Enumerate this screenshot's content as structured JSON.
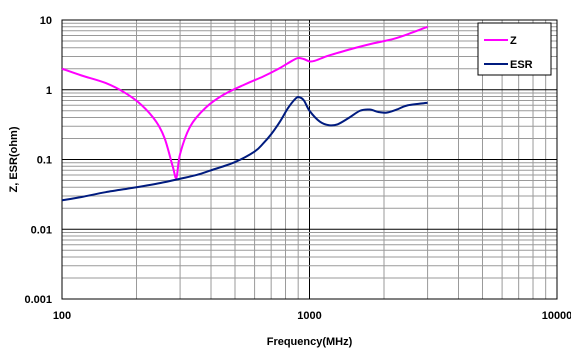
{
  "chart_data": {
    "type": "line",
    "xlabel": "Frequency(MHz)",
    "ylabel": "Z, ESR(ohm)",
    "x_scale": "log",
    "y_scale": "log",
    "xlim": [
      100,
      10000
    ],
    "ylim": [
      0.001,
      10
    ],
    "x_ticks": [
      "100",
      "1000",
      "10000"
    ],
    "y_ticks": [
      "0.001",
      "0.01",
      "0.1",
      "1",
      "10"
    ],
    "grid": true,
    "legend_position": "top-right",
    "series": [
      {
        "name": "Z",
        "color": "#ff00ff",
        "points": [
          [
            100,
            2.0
          ],
          [
            120,
            1.6
          ],
          [
            150,
            1.25
          ],
          [
            180,
            0.9
          ],
          [
            210,
            0.6
          ],
          [
            240,
            0.35
          ],
          [
            260,
            0.2
          ],
          [
            280,
            0.08
          ],
          [
            290,
            0.055
          ],
          [
            300,
            0.12
          ],
          [
            330,
            0.3
          ],
          [
            380,
            0.55
          ],
          [
            450,
            0.85
          ],
          [
            550,
            1.2
          ],
          [
            650,
            1.55
          ],
          [
            750,
            2.0
          ],
          [
            850,
            2.6
          ],
          [
            900,
            2.85
          ],
          [
            950,
            2.75
          ],
          [
            1000,
            2.55
          ],
          [
            1050,
            2.6
          ],
          [
            1200,
            3.1
          ],
          [
            1500,
            3.9
          ],
          [
            1800,
            4.6
          ],
          [
            2200,
            5.4
          ],
          [
            2600,
            6.6
          ],
          [
            3000,
            8.0
          ]
        ]
      },
      {
        "name": "ESR",
        "color": "#001b7f",
        "points": [
          [
            100,
            0.026
          ],
          [
            120,
            0.029
          ],
          [
            150,
            0.034
          ],
          [
            200,
            0.04
          ],
          [
            250,
            0.046
          ],
          [
            300,
            0.053
          ],
          [
            350,
            0.06
          ],
          [
            400,
            0.07
          ],
          [
            500,
            0.092
          ],
          [
            600,
            0.13
          ],
          [
            650,
            0.17
          ],
          [
            700,
            0.23
          ],
          [
            760,
            0.35
          ],
          [
            820,
            0.55
          ],
          [
            880,
            0.75
          ],
          [
            910,
            0.78
          ],
          [
            950,
            0.7
          ],
          [
            1000,
            0.5
          ],
          [
            1100,
            0.35
          ],
          [
            1200,
            0.31
          ],
          [
            1300,
            0.32
          ],
          [
            1450,
            0.4
          ],
          [
            1600,
            0.5
          ],
          [
            1750,
            0.52
          ],
          [
            1900,
            0.48
          ],
          [
            2050,
            0.47
          ],
          [
            2250,
            0.52
          ],
          [
            2500,
            0.6
          ],
          [
            3000,
            0.65
          ]
        ]
      }
    ]
  }
}
